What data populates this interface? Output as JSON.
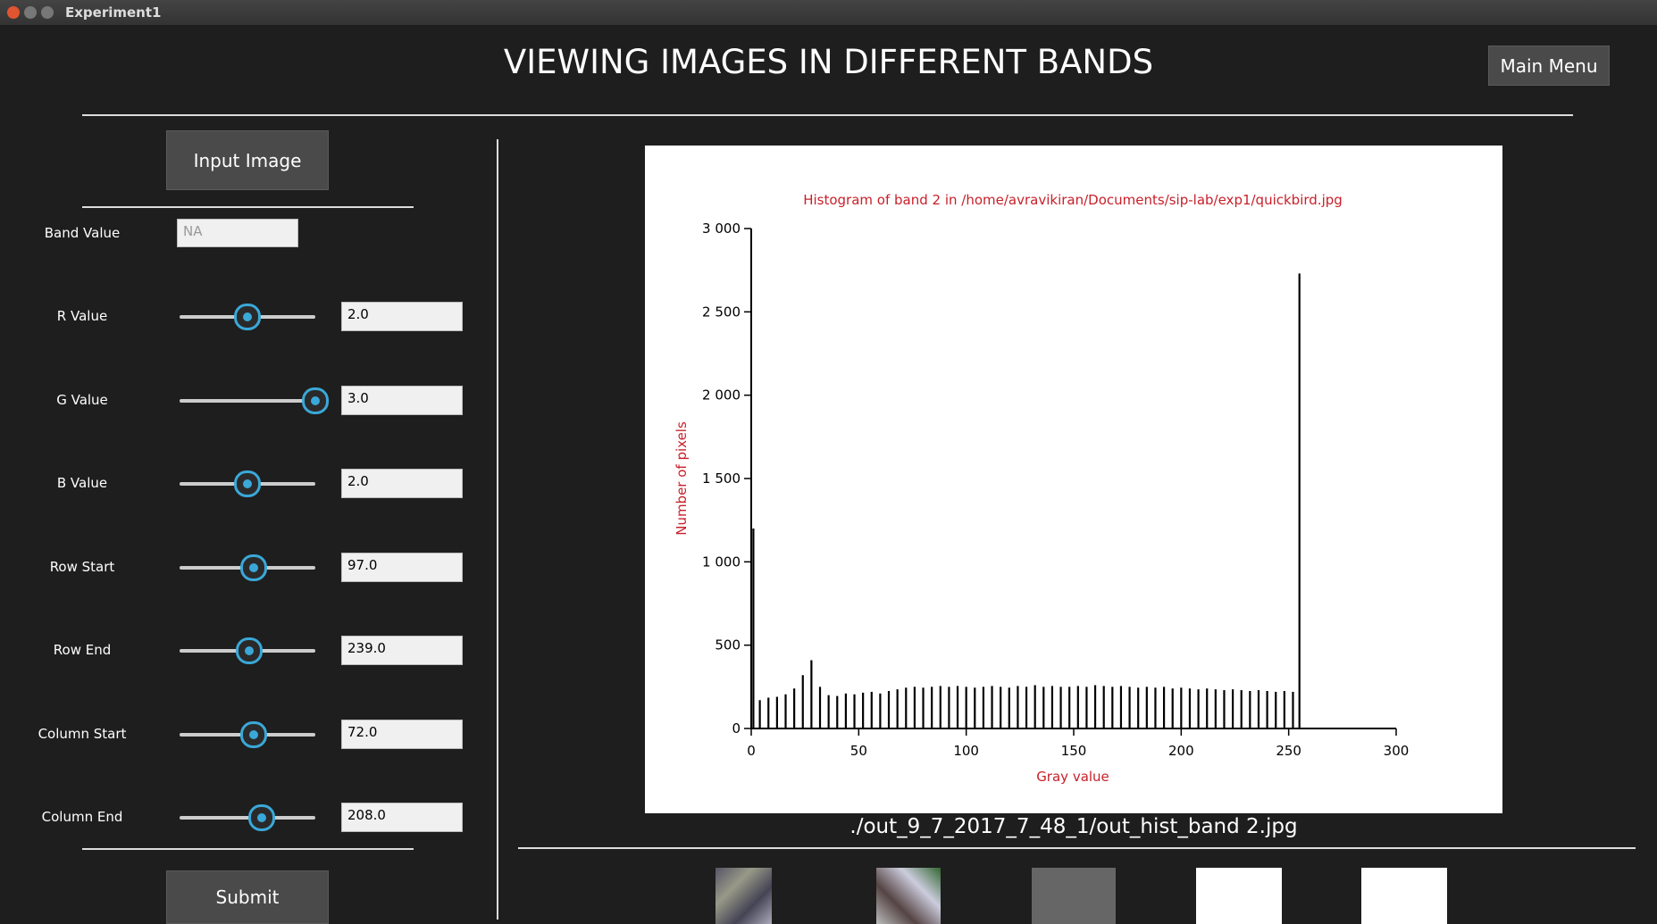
{
  "window": {
    "title": "Experiment1"
  },
  "header": {
    "title": "VIEWING IMAGES IN DIFFERENT BANDS",
    "menu_button": "Main Menu"
  },
  "sidebar": {
    "input_button": "Input Image",
    "band": {
      "label": "Band Value",
      "placeholder": "NA"
    },
    "sliders": [
      {
        "label": "R Value",
        "value": "2.0"
      },
      {
        "label": "G Value",
        "value": "3.0"
      },
      {
        "label": "B Value",
        "value": "2.0"
      },
      {
        "label": "Row Start",
        "value": "97.0"
      },
      {
        "label": "Row End",
        "value": "239.0"
      },
      {
        "label": "Column Start",
        "value": "72.0"
      },
      {
        "label": "Column End",
        "value": "208.0"
      }
    ],
    "submit_button": "Submit"
  },
  "histogram": {
    "type": "bar",
    "title": "Histogram of band 2 in /home/avravikiran/Documents/sip-lab/exp1/quickbird.jpg",
    "xlabel": "Gray value",
    "ylabel": "Number of pixels",
    "color": "#000000",
    "x": [
      1,
      4,
      8,
      12,
      16,
      20,
      24,
      28,
      32,
      36,
      40,
      44,
      48,
      52,
      56,
      60,
      64,
      68,
      72,
      76,
      80,
      84,
      88,
      92,
      96,
      100,
      104,
      108,
      112,
      116,
      120,
      124,
      128,
      132,
      136,
      140,
      144,
      148,
      152,
      156,
      160,
      164,
      168,
      172,
      176,
      180,
      184,
      188,
      192,
      196,
      200,
      204,
      208,
      212,
      216,
      220,
      224,
      228,
      232,
      236,
      240,
      244,
      248,
      252,
      255
    ],
    "values": [
      1200,
      170,
      185,
      190,
      205,
      240,
      320,
      410,
      250,
      200,
      195,
      210,
      205,
      215,
      220,
      210,
      225,
      235,
      245,
      250,
      245,
      250,
      255,
      250,
      255,
      250,
      245,
      250,
      255,
      250,
      245,
      255,
      250,
      260,
      250,
      255,
      250,
      250,
      255,
      250,
      260,
      255,
      250,
      255,
      250,
      245,
      250,
      245,
      250,
      240,
      245,
      240,
      235,
      240,
      235,
      230,
      235,
      230,
      225,
      230,
      225,
      220,
      225,
      220,
      2730
    ],
    "xlim": [
      0,
      300
    ],
    "xticks": [
      0,
      50,
      100,
      150,
      200,
      250,
      300
    ],
    "ylim": [
      0,
      3000
    ],
    "yticks": [
      0,
      500,
      {
        "value": 1000,
        "label": "1 000"
      },
      {
        "value": 1500,
        "label": "1 500"
      },
      {
        "value": 2000,
        "label": "2 000"
      },
      {
        "value": 2500,
        "label": "2 500"
      },
      {
        "value": 3000,
        "label": "3 000"
      }
    ]
  },
  "caption": "./out_9_7_2017_7_48_1/out_hist_band 2.jpg"
}
